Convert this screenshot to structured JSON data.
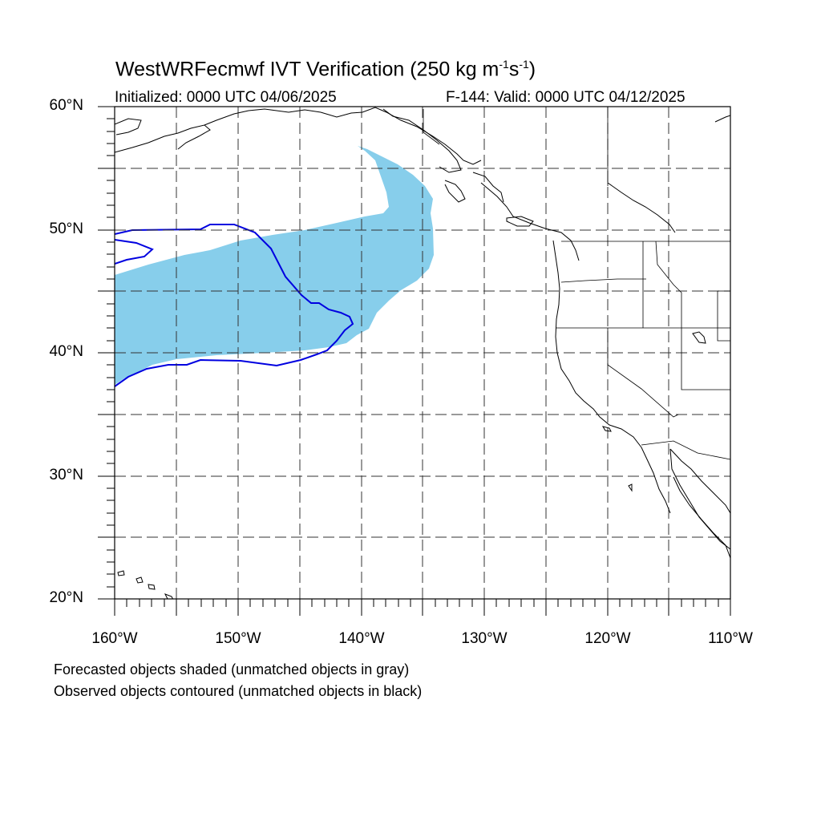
{
  "title": {
    "main": "WestWRFecmwf IVT Verification (250 kg m",
    "sup1": "-1",
    "mid": "s",
    "sup2": "-1",
    "end": ")"
  },
  "subtitle": {
    "initialized": "Initialized: 0000 UTC 04/06/2025",
    "valid": "F-144: Valid: 0000 UTC 04/12/2025"
  },
  "map": {
    "lon_range": [
      -160,
      -110
    ],
    "lat_range": [
      20,
      60
    ],
    "grid_lines": "dashed, every 5 degrees",
    "lat_labels": [
      "60°N",
      "50°N",
      "40°N",
      "30°N",
      "20°N"
    ],
    "lon_labels": [
      "160°W",
      "150°W",
      "140°W",
      "130°W",
      "120°W",
      "110°W"
    ],
    "forecast_color": "#87ceeb",
    "observed_color": "#0000e0",
    "coastline_color": "#000000"
  },
  "legend": {
    "forecast_note": "Forecasted objects shaded (unmatched objects in gray)",
    "observed_note": "Observed objects contoured (unmatched objects in black)"
  }
}
